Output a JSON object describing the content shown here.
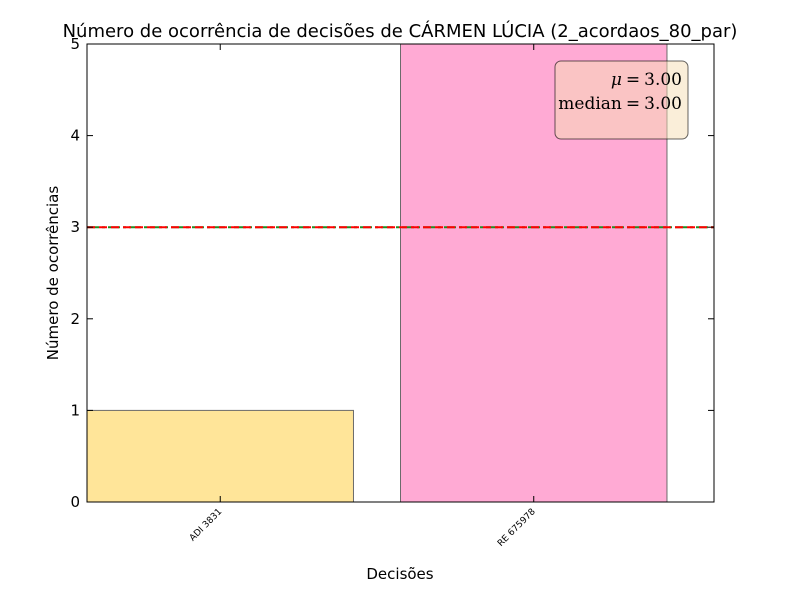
{
  "chart_data": {
    "type": "bar",
    "title": "Número de ocorrência de decisões de CÁRMEN LÚCIA (2_acordaos_80_par)",
    "xlabel": "Decisões",
    "ylabel": "Número de ocorrências",
    "categories": [
      "ADI 3831",
      "RE 675978"
    ],
    "values": [
      1,
      5
    ],
    "bar_colors": [
      "#ffe599",
      "#ffaad4"
    ],
    "ylim": [
      0,
      5
    ],
    "yticks": [
      "0",
      "1",
      "2",
      "3",
      "4",
      "5"
    ],
    "mean_value": 3.0,
    "median_value": 3.0,
    "mean_line_color": "#228b22",
    "median_line_color": "#ff0000",
    "stats_box": {
      "mean_symbol": "μ",
      "mean_text": "3.00",
      "median_label": "median",
      "median_text": "3.00",
      "location": "top-right"
    },
    "grid": false
  }
}
